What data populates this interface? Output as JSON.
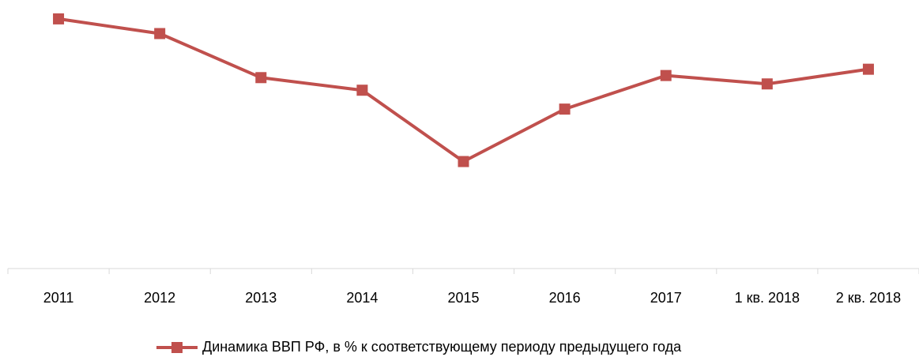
{
  "chart_data": {
    "type": "line",
    "categories": [
      "2011",
      "2012",
      "2013",
      "2014",
      "2015",
      "2016",
      "2017",
      "1 кв. 2018",
      "2 кв. 2018"
    ],
    "series": [
      {
        "name": "Динамика ВВП РФ, в % к соответствующему периоду предыдущего года",
        "color": "#c0504d",
        "values": [
          104.3,
          103.6,
          101.5,
          100.9,
          97.5,
          100.0,
          101.6,
          101.2,
          101.9
        ]
      }
    ],
    "ylim": [
      92.4,
      105.2
    ],
    "grid": false,
    "legend": "bottom"
  }
}
